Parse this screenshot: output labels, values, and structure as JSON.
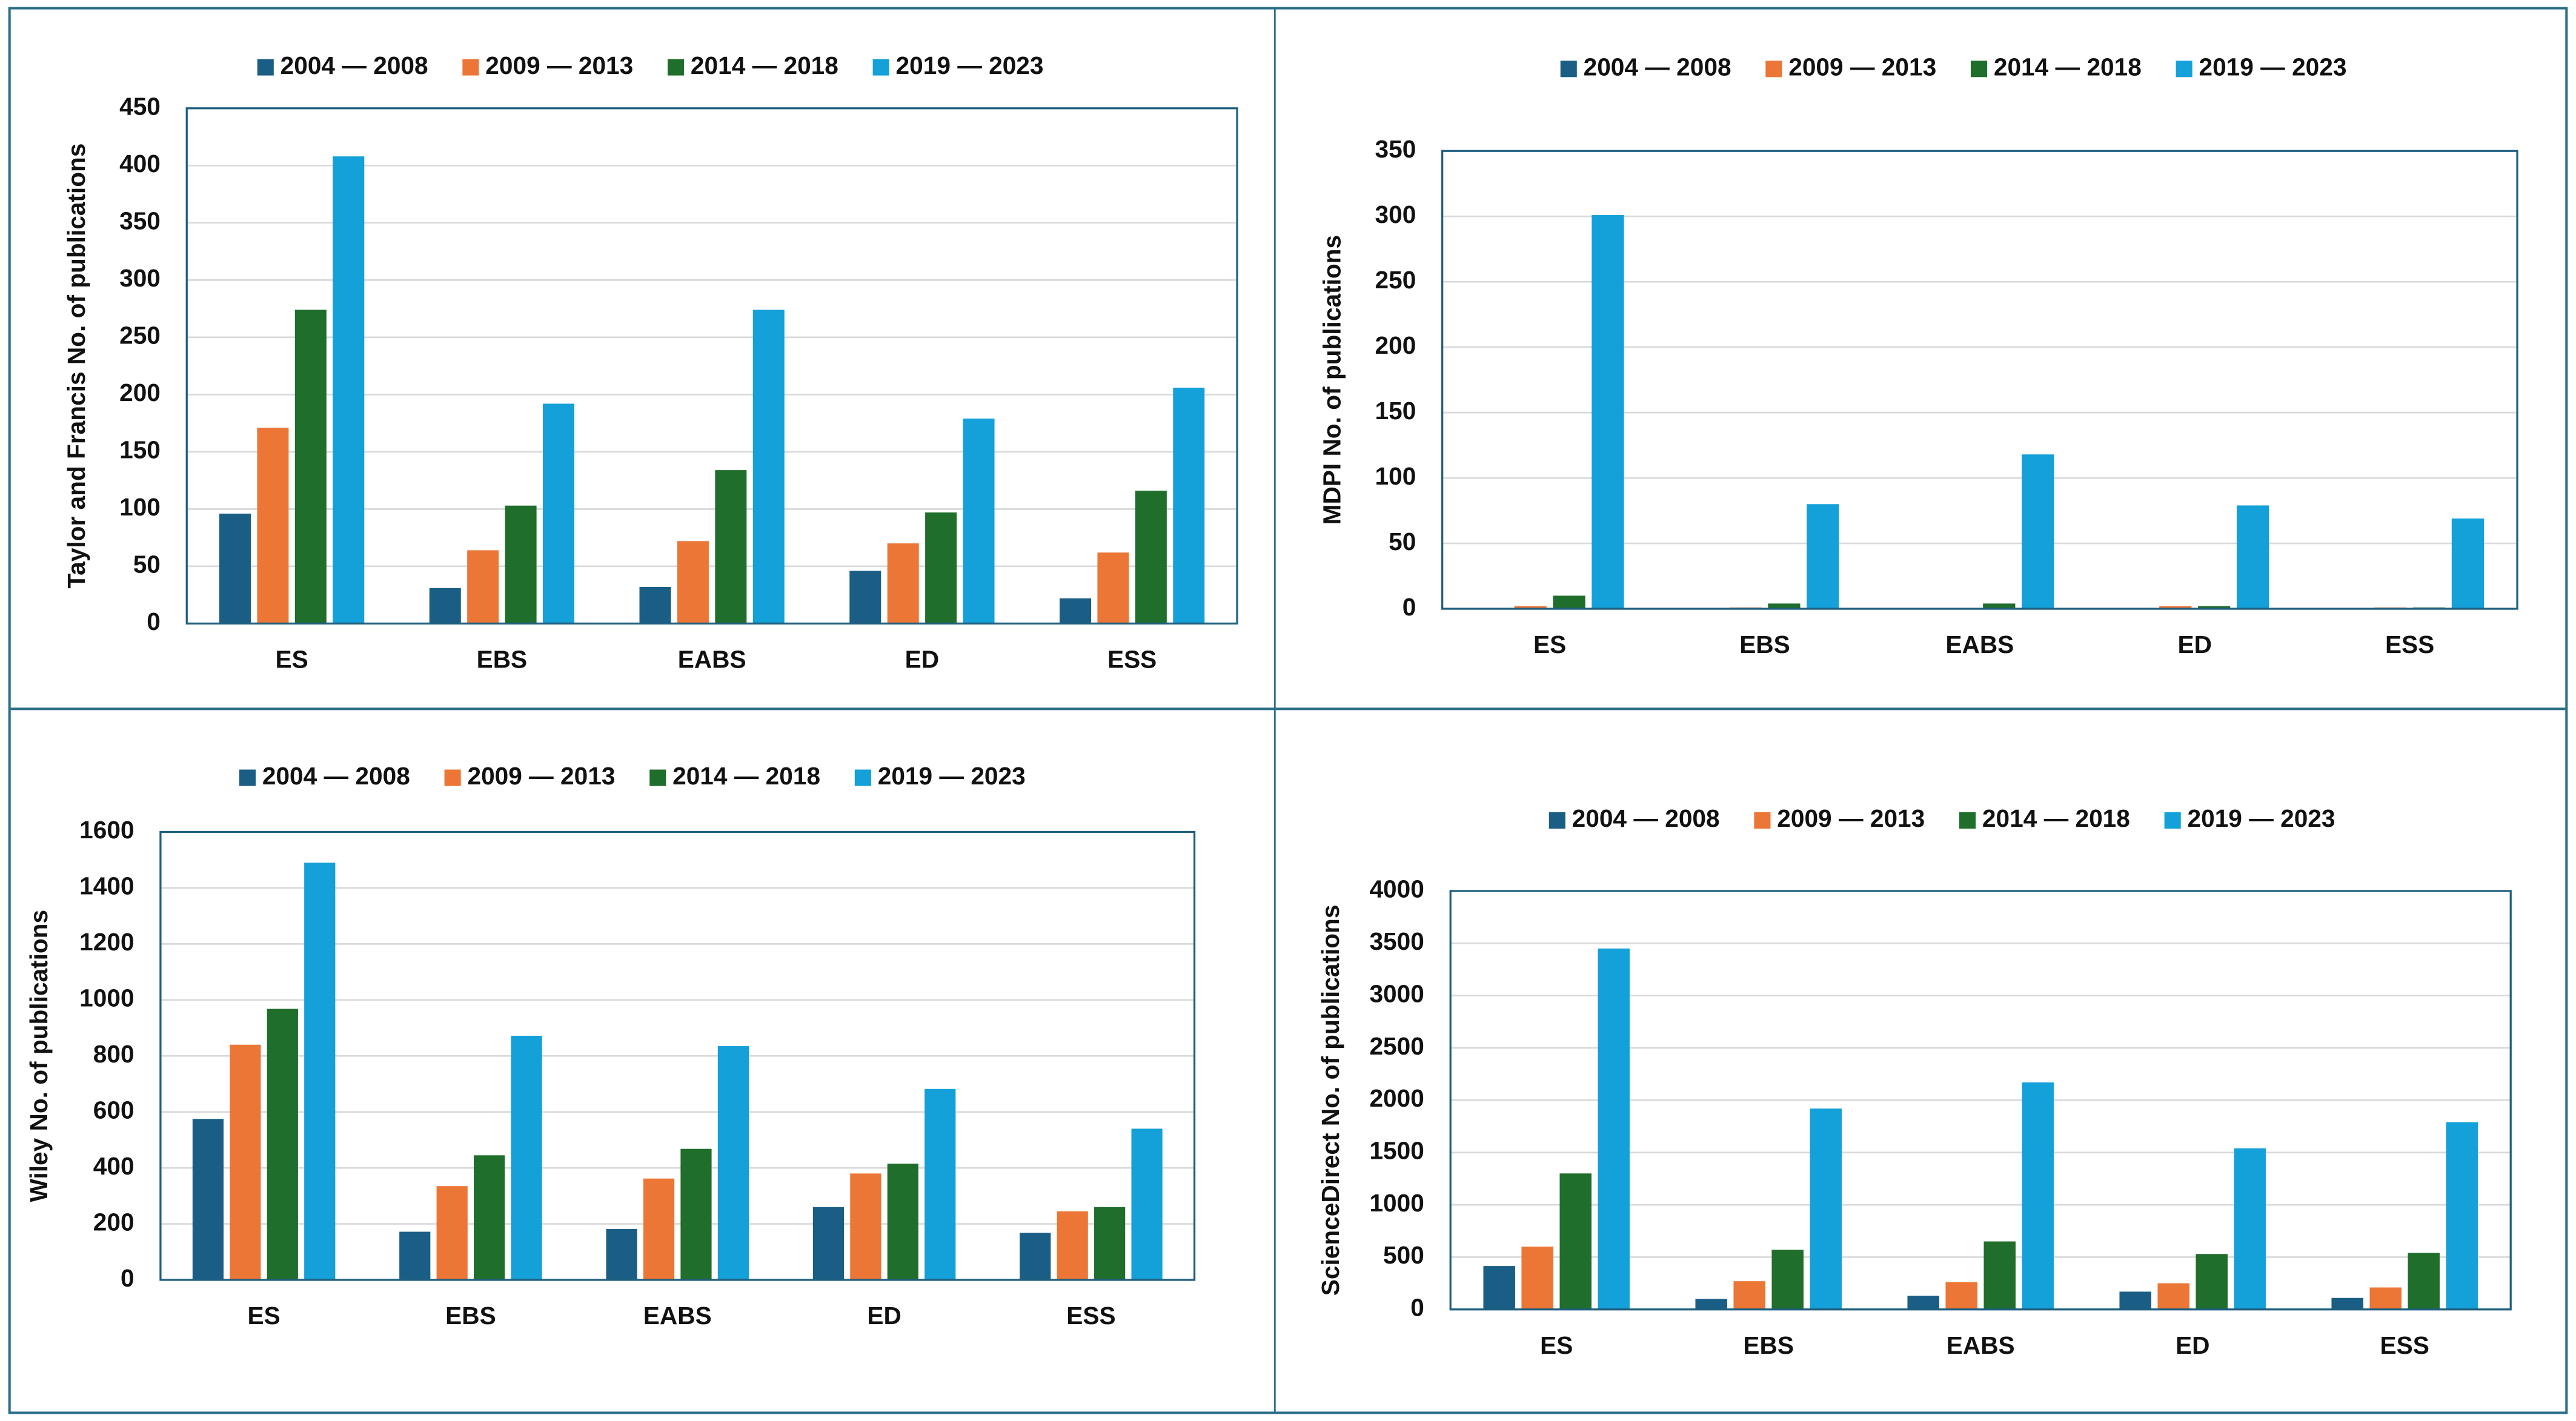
{
  "chart_data": [
    {
      "type": "bar",
      "y_label": "Taylor and Francis No. of publications",
      "categories": [
        "ES",
        "EBS",
        "EABS",
        "ED",
        "ESS"
      ],
      "series": [
        {
          "name": "2004 — 2008",
          "color": "#1a5e86",
          "values": [
            96,
            31,
            32,
            46,
            22
          ]
        },
        {
          "name": "2009 — 2013",
          "color": "#ec7636",
          "values": [
            171,
            64,
            72,
            70,
            62
          ]
        },
        {
          "name": "2014 — 2018",
          "color": "#1f6e2b",
          "values": [
            274,
            103,
            134,
            97,
            116
          ]
        },
        {
          "name": "2019 — 2023",
          "color": "#14a0d8",
          "values": [
            408,
            192,
            274,
            179,
            206
          ]
        }
      ],
      "ylim": [
        0,
        450
      ],
      "yticks": [
        0,
        50,
        100,
        150,
        200,
        250,
        300,
        350,
        400,
        450
      ],
      "grid": true
    },
    {
      "type": "bar",
      "y_label": "MDPI No. of publications",
      "categories": [
        "ES",
        "EBS",
        "EABS",
        "ED",
        "ESS"
      ],
      "series": [
        {
          "name": "2004 — 2008",
          "color": "#1a5e86",
          "values": [
            0,
            0,
            0,
            0,
            0
          ]
        },
        {
          "name": "2009 — 2013",
          "color": "#ec7636",
          "values": [
            2,
            1,
            0,
            2,
            1
          ]
        },
        {
          "name": "2014 — 2018",
          "color": "#1f6e2b",
          "values": [
            10,
            4,
            4,
            2,
            1
          ]
        },
        {
          "name": "2019 — 2023",
          "color": "#14a0d8",
          "values": [
            301,
            80,
            118,
            79,
            69
          ]
        }
      ],
      "ylim": [
        0,
        350
      ],
      "yticks": [
        0,
        50,
        100,
        150,
        200,
        250,
        300,
        350
      ],
      "grid": true
    },
    {
      "type": "bar",
      "y_label": "Wiley No. of publications",
      "categories": [
        "ES",
        "EBS",
        "EABS",
        "ED",
        "ESS"
      ],
      "series": [
        {
          "name": "2004 — 2008",
          "color": "#1a5e86",
          "values": [
            575,
            172,
            182,
            260,
            168
          ]
        },
        {
          "name": "2009 — 2013",
          "color": "#ec7636",
          "values": [
            840,
            335,
            362,
            380,
            245
          ]
        },
        {
          "name": "2014 — 2018",
          "color": "#1f6e2b",
          "values": [
            968,
            445,
            468,
            415,
            260
          ]
        },
        {
          "name": "2019 — 2023",
          "color": "#14a0d8",
          "values": [
            1490,
            872,
            835,
            682,
            540
          ]
        }
      ],
      "ylim": [
        0,
        1600
      ],
      "yticks": [
        0,
        200,
        400,
        600,
        800,
        1000,
        1200,
        1400,
        1600
      ],
      "grid": true
    },
    {
      "type": "bar",
      "y_label": "ScienceDirect No. of publications",
      "categories": [
        "ES",
        "EBS",
        "EABS",
        "ED",
        "ESS"
      ],
      "series": [
        {
          "name": "2004 — 2008",
          "color": "#1a5e86",
          "values": [
            415,
            100,
            130,
            170,
            110
          ]
        },
        {
          "name": "2009 — 2013",
          "color": "#ec7636",
          "values": [
            600,
            270,
            260,
            250,
            210
          ]
        },
        {
          "name": "2014 — 2018",
          "color": "#1f6e2b",
          "values": [
            1300,
            570,
            650,
            530,
            540
          ]
        },
        {
          "name": "2019 — 2023",
          "color": "#14a0d8",
          "values": [
            3450,
            1920,
            2170,
            1540,
            1790
          ]
        }
      ],
      "ylim": [
        0,
        4000
      ],
      "yticks": [
        0,
        500,
        1000,
        1500,
        2000,
        2500,
        3000,
        3500,
        4000
      ],
      "grid": true
    }
  ]
}
